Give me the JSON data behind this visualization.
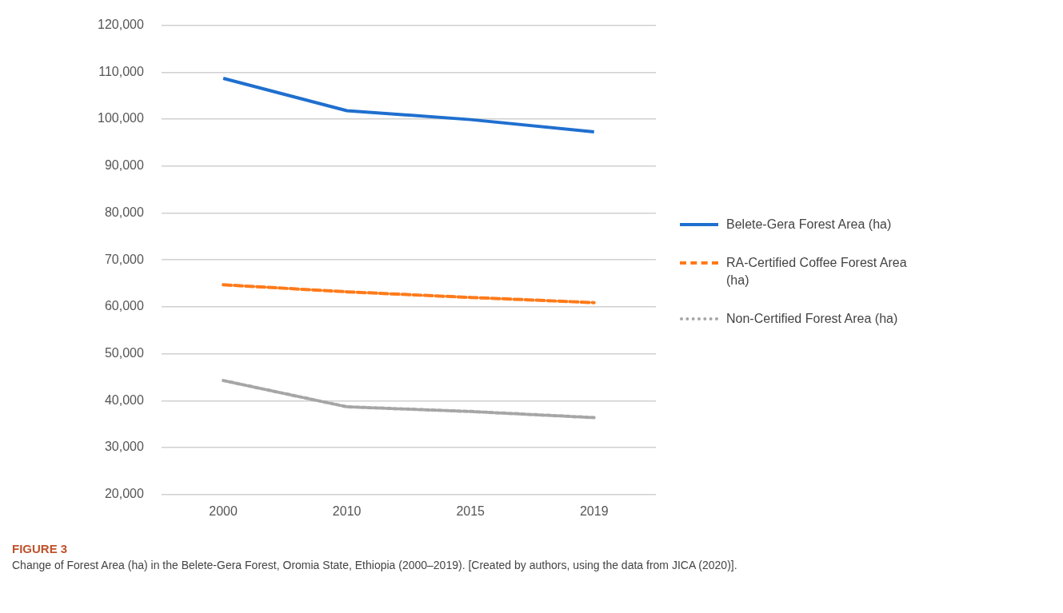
{
  "chart_data": {
    "type": "line",
    "title": "FIGURE 3",
    "annotations": [
      "Change of Forest Area (ha) in the Belete-Gera Forest, Oromia State, Ethiopia (2000–2019). [Created by authors, using the data from JICA (2020)]."
    ],
    "categories": [
      "2000",
      "2010",
      "2015",
      "2019"
    ],
    "series": [
      {
        "name": "Belete-Gera Forest Area (ha)",
        "color": "#1f6fcf",
        "values": [
          108700,
          101800,
          99900,
          97300
        ],
        "line_style": "solid"
      },
      {
        "name": "RA-Certified Coffee Forest Area (ha)",
        "color": "#ff7a1a",
        "values": [
          64700,
          63200,
          62000,
          60900
        ],
        "line_style": "dashed"
      },
      {
        "name": "Non-Certified Forest Area (ha)",
        "color": "#a6a6a6",
        "values": [
          44300,
          38700,
          37700,
          36400
        ],
        "line_style": "dotted"
      }
    ],
    "ylim": [
      20000,
      120000
    ],
    "yticks": [
      {
        "value": 20000,
        "label": "20,000"
      },
      {
        "value": 30000,
        "label": "30,000"
      },
      {
        "value": 40000,
        "label": "40,000"
      },
      {
        "value": 50000,
        "label": "50,000"
      },
      {
        "value": 60000,
        "label": "60,000"
      },
      {
        "value": 70000,
        "label": "70,000"
      },
      {
        "value": 80000,
        "label": "80,000"
      },
      {
        "value": 90000,
        "label": "90,000"
      },
      {
        "value": 100000,
        "label": "100,000"
      },
      {
        "value": 110000,
        "label": "110,000"
      },
      {
        "value": 120000,
        "label": "120,000"
      }
    ],
    "grid": "y",
    "legend": "right",
    "marker": "none"
  }
}
